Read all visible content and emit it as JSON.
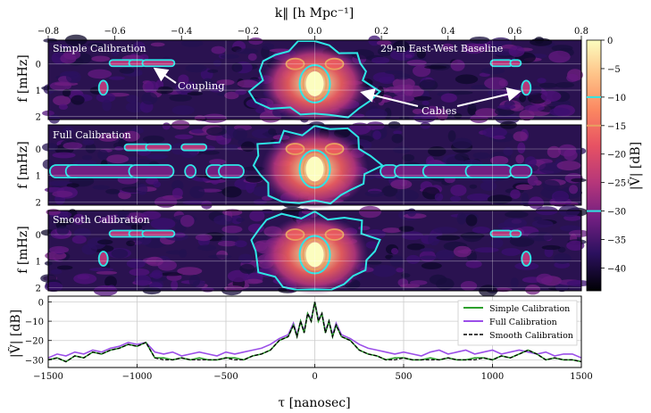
{
  "chart_data": [
    {
      "type": "heatmap",
      "panel": "simple",
      "label": "Simple Calibration",
      "extra_label": "29-m East-West Baseline",
      "ylabel": "f [mHz]",
      "y_ticks": [
        0,
        1,
        2
      ],
      "annotations": [
        "Coupling",
        "Cables"
      ]
    },
    {
      "type": "heatmap",
      "panel": "full",
      "label": "Full Calibration",
      "ylabel": "f [mHz]",
      "y_ticks": [
        0,
        1,
        2
      ]
    },
    {
      "type": "heatmap",
      "panel": "smooth",
      "label": "Smooth Calibration",
      "ylabel": "f [mHz]",
      "y_ticks": [
        0,
        1,
        2
      ]
    },
    {
      "type": "line",
      "xlabel": "τ [nanosec]",
      "ylabel": "|Ṽ| [dB]",
      "xlim": [
        -1500,
        1500
      ],
      "ylim": [
        -34,
        3
      ],
      "x_ticks": [
        -1500,
        -1000,
        -500,
        0,
        500,
        1000,
        1500
      ],
      "y_ticks": [
        0,
        -10,
        -20,
        -30
      ],
      "legend_position": "top-right",
      "grid": true,
      "series": [
        {
          "name": "Simple Calibration",
          "color": "#2ca02c",
          "style": "solid",
          "x": [
            -1500,
            -1450,
            -1400,
            -1350,
            -1300,
            -1250,
            -1200,
            -1150,
            -1100,
            -1050,
            -1000,
            -950,
            -900,
            -850,
            -800,
            -750,
            -700,
            -650,
            -600,
            -550,
            -500,
            -450,
            -400,
            -350,
            -300,
            -250,
            -200,
            -150,
            -120,
            -100,
            -80,
            -60,
            -40,
            -20,
            0,
            20,
            40,
            60,
            80,
            100,
            120,
            150,
            200,
            250,
            300,
            350,
            400,
            450,
            500,
            550,
            600,
            650,
            700,
            750,
            800,
            850,
            900,
            950,
            1000,
            1050,
            1100,
            1150,
            1200,
            1250,
            1300,
            1350,
            1400,
            1450,
            1500
          ],
          "y": [
            -30,
            -29,
            -31,
            -28,
            -29,
            -26,
            -27,
            -25,
            -24,
            -22,
            -23,
            -21,
            -29,
            -29,
            -30,
            -29,
            -30,
            -29,
            -30,
            -30,
            -29,
            -29,
            -30,
            -28,
            -27,
            -25,
            -20,
            -18,
            -12,
            -18,
            -10,
            -16,
            -6,
            -10,
            0,
            -10,
            -6,
            -16,
            -10,
            -18,
            -12,
            -18,
            -20,
            -25,
            -27,
            -28,
            -30,
            -29,
            -29,
            -30,
            -30,
            -29,
            -30,
            -29,
            -30,
            -30,
            -29,
            -29,
            -30,
            -28,
            -29,
            -27,
            -25,
            -27,
            -30,
            -29,
            -30,
            -30,
            -31
          ]
        },
        {
          "name": "Full Calibration",
          "color": "#9b4ee8",
          "style": "solid",
          "x": [
            -1500,
            -1450,
            -1400,
            -1350,
            -1300,
            -1250,
            -1200,
            -1150,
            -1100,
            -1050,
            -1000,
            -950,
            -900,
            -850,
            -800,
            -750,
            -700,
            -650,
            -600,
            -550,
            -500,
            -450,
            -400,
            -350,
            -300,
            -250,
            -200,
            -150,
            -120,
            -100,
            -80,
            -60,
            -40,
            -20,
            0,
            20,
            40,
            60,
            80,
            100,
            120,
            150,
            200,
            250,
            300,
            350,
            400,
            450,
            500,
            550,
            600,
            650,
            700,
            750,
            800,
            850,
            900,
            950,
            1000,
            1050,
            1100,
            1150,
            1200,
            1250,
            1300,
            1350,
            1400,
            1450,
            1500
          ],
          "y": [
            -29,
            -27,
            -28,
            -26,
            -27,
            -25,
            -26,
            -24,
            -23,
            -21,
            -22,
            -21,
            -26,
            -27,
            -26,
            -28,
            -27,
            -26,
            -27,
            -28,
            -26,
            -27,
            -26,
            -25,
            -24,
            -22,
            -19,
            -17,
            -11,
            -17,
            -10,
            -15,
            -6,
            -9,
            0,
            -9,
            -6,
            -15,
            -10,
            -17,
            -11,
            -17,
            -19,
            -22,
            -24,
            -25,
            -26,
            -27,
            -26,
            -27,
            -28,
            -26,
            -25,
            -27,
            -26,
            -25,
            -27,
            -26,
            -25,
            -27,
            -26,
            -25,
            -26,
            -27,
            -26,
            -28,
            -27,
            -27,
            -29
          ]
        },
        {
          "name": "Smooth Calibration",
          "color": "#000000",
          "style": "dashed",
          "x": [
            -1500,
            -1450,
            -1400,
            -1350,
            -1300,
            -1250,
            -1200,
            -1150,
            -1100,
            -1050,
            -1000,
            -950,
            -900,
            -850,
            -800,
            -750,
            -700,
            -650,
            -600,
            -550,
            -500,
            -450,
            -400,
            -350,
            -300,
            -250,
            -200,
            -150,
            -120,
            -100,
            -80,
            -60,
            -40,
            -20,
            0,
            20,
            40,
            60,
            80,
            100,
            120,
            150,
            200,
            250,
            300,
            350,
            400,
            450,
            500,
            550,
            600,
            650,
            700,
            750,
            800,
            850,
            900,
            950,
            1000,
            1050,
            1100,
            1150,
            1200,
            1250,
            1300,
            1350,
            1400,
            1450,
            1500
          ],
          "y": [
            -30,
            -29,
            -31,
            -28,
            -29,
            -26,
            -27,
            -25,
            -24,
            -22,
            -23,
            -21,
            -29,
            -30,
            -30,
            -29,
            -30,
            -30,
            -30,
            -30,
            -29,
            -30,
            -30,
            -28,
            -27,
            -25,
            -20,
            -18,
            -12,
            -18,
            -10,
            -16,
            -6,
            -10,
            0,
            -10,
            -6,
            -16,
            -10,
            -18,
            -12,
            -18,
            -20,
            -25,
            -27,
            -28,
            -30,
            -30,
            -29,
            -30,
            -30,
            -30,
            -30,
            -29,
            -30,
            -30,
            -30,
            -29,
            -30,
            -28,
            -29,
            -27,
            -25,
            -27,
            -30,
            -29,
            -30,
            -30,
            -31
          ]
        }
      ]
    }
  ],
  "axes": {
    "top_xlabel": "k‖ [h Mpc⁻¹]",
    "top_ticks": [
      -0.8,
      -0.6,
      -0.4,
      -0.2,
      0.0,
      0.2,
      0.4,
      0.6,
      0.8
    ],
    "top_tick_labels": [
      "−0.8",
      "−0.6",
      "−0.4",
      "−0.2",
      "0.0",
      "0.2",
      "0.4",
      "0.6",
      "0.8"
    ]
  },
  "colorbar": {
    "label": "|Ṽ| [dB]",
    "ticks": [
      0,
      -5,
      -10,
      -15,
      -20,
      -25,
      -30,
      -35,
      -40
    ],
    "tick_labels": [
      "0",
      "−5",
      "−10",
      "−15",
      "−20",
      "−25",
      "−30",
      "−35",
      "−40"
    ],
    "range": [
      -44,
      0
    ],
    "contour_levels": [
      -10,
      -15,
      -30
    ],
    "colormap": "magma",
    "contour_colors": [
      "#2ee6e6",
      "#e8a060",
      "#2ee6e6"
    ]
  }
}
